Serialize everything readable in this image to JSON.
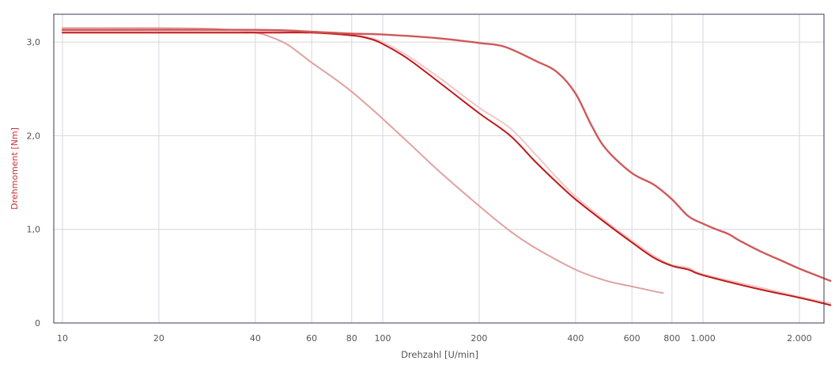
{
  "chart_data": {
    "type": "line",
    "xlabel": "Drehzahl [U/min]",
    "ylabel": "Drehmoment [Nm]",
    "x_scale": "log",
    "xlim": [
      10,
      2500
    ],
    "ylim": [
      0,
      3.3
    ],
    "x_ticks": [
      {
        "value": 10,
        "label": "10"
      },
      {
        "value": 20,
        "label": "20"
      },
      {
        "value": 40,
        "label": "40"
      },
      {
        "value": 60,
        "label": "60"
      },
      {
        "value": 80,
        "label": "80"
      },
      {
        "value": 100,
        "label": "100"
      },
      {
        "value": 200,
        "label": "200"
      },
      {
        "value": 400,
        "label": "400"
      },
      {
        "value": 600,
        "label": "600"
      },
      {
        "value": 800,
        "label": "800"
      },
      {
        "value": 1000,
        "label": "1.000"
      },
      {
        "value": 2000,
        "label": "2.000"
      }
    ],
    "y_ticks": [
      {
        "value": 0,
        "label": "0"
      },
      {
        "value": 1,
        "label": "1,0"
      },
      {
        "value": 2,
        "label": "2,0"
      },
      {
        "value": 3,
        "label": "3,0"
      }
    ],
    "grid": true,
    "series": [
      {
        "color": "#e3a0a0",
        "width": 2,
        "points": [
          [
            10,
            3.15
          ],
          [
            20,
            3.15
          ],
          [
            30,
            3.14
          ],
          [
            40,
            3.1
          ],
          [
            45,
            3.05
          ],
          [
            50,
            2.98
          ],
          [
            55,
            2.88
          ],
          [
            60,
            2.78
          ],
          [
            70,
            2.62
          ],
          [
            80,
            2.47
          ],
          [
            90,
            2.32
          ],
          [
            100,
            2.18
          ],
          [
            120,
            1.93
          ],
          [
            150,
            1.62
          ],
          [
            200,
            1.25
          ],
          [
            250,
            0.98
          ],
          [
            300,
            0.8
          ],
          [
            400,
            0.57
          ],
          [
            500,
            0.45
          ],
          [
            600,
            0.39
          ],
          [
            700,
            0.34
          ],
          [
            750,
            0.32
          ]
        ]
      },
      {
        "color": "#f2c6c6",
        "width": 2,
        "points": [
          [
            10,
            3.12
          ],
          [
            40,
            3.12
          ],
          [
            60,
            3.11
          ],
          [
            80,
            3.08
          ],
          [
            90,
            3.05
          ],
          [
            100,
            3.0
          ],
          [
            120,
            2.85
          ],
          [
            150,
            2.62
          ],
          [
            200,
            2.3
          ],
          [
            250,
            2.08
          ],
          [
            300,
            1.8
          ],
          [
            350,
            1.55
          ],
          [
            400,
            1.35
          ],
          [
            500,
            1.08
          ],
          [
            600,
            0.88
          ],
          [
            700,
            0.72
          ],
          [
            800,
            0.62
          ],
          [
            900,
            0.59
          ],
          [
            1000,
            0.52
          ],
          [
            1500,
            0.38
          ],
          [
            2000,
            0.28
          ],
          [
            2500,
            0.21
          ]
        ]
      },
      {
        "color": "#c01818",
        "width": 2,
        "points": [
          [
            10,
            3.1
          ],
          [
            40,
            3.1
          ],
          [
            60,
            3.1
          ],
          [
            80,
            3.07
          ],
          [
            90,
            3.04
          ],
          [
            100,
            2.98
          ],
          [
            120,
            2.82
          ],
          [
            150,
            2.57
          ],
          [
            200,
            2.24
          ],
          [
            250,
            2.0
          ],
          [
            300,
            1.72
          ],
          [
            350,
            1.5
          ],
          [
            400,
            1.32
          ],
          [
            500,
            1.06
          ],
          [
            600,
            0.86
          ],
          [
            700,
            0.7
          ],
          [
            800,
            0.61
          ],
          [
            900,
            0.57
          ],
          [
            1000,
            0.51
          ],
          [
            1500,
            0.36
          ],
          [
            2000,
            0.27
          ],
          [
            2500,
            0.19
          ]
        ]
      },
      {
        "color": "#d05858",
        "width": 2.4,
        "points": [
          [
            10,
            3.13
          ],
          [
            40,
            3.13
          ],
          [
            60,
            3.11
          ],
          [
            80,
            3.09
          ],
          [
            100,
            3.08
          ],
          [
            150,
            3.04
          ],
          [
            200,
            2.99
          ],
          [
            240,
            2.95
          ],
          [
            300,
            2.8
          ],
          [
            350,
            2.68
          ],
          [
            400,
            2.45
          ],
          [
            450,
            2.1
          ],
          [
            500,
            1.85
          ],
          [
            600,
            1.6
          ],
          [
            700,
            1.48
          ],
          [
            800,
            1.32
          ],
          [
            900,
            1.14
          ],
          [
            1000,
            1.06
          ],
          [
            1100,
            1.0
          ],
          [
            1200,
            0.95
          ],
          [
            1300,
            0.88
          ],
          [
            1500,
            0.77
          ],
          [
            1800,
            0.65
          ],
          [
            2000,
            0.58
          ],
          [
            2500,
            0.45
          ]
        ]
      }
    ]
  }
}
